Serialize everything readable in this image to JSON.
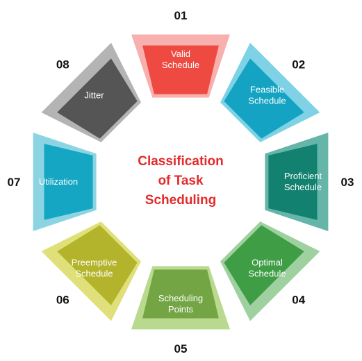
{
  "center_title": [
    "Classification",
    "of Task",
    "Scheduling"
  ],
  "segments": [
    {
      "number": "01",
      "label": [
        "Valid",
        "Schedule"
      ],
      "color": "#ee4a42",
      "tint": "#f7b0ad"
    },
    {
      "number": "02",
      "label": [
        "Feasible",
        "Schedule"
      ],
      "color": "#14a3c2",
      "tint": "#7fd2e6"
    },
    {
      "number": "03",
      "label": [
        "Proficient",
        "Schedule"
      ],
      "color": "#128170",
      "tint": "#65b5a9"
    },
    {
      "number": "04",
      "label": [
        "Optimal",
        "Schedule"
      ],
      "color": "#3f9d45",
      "tint": "#9fd09f"
    },
    {
      "number": "05",
      "label": [
        "Scheduling",
        "Points"
      ],
      "color": "#74a545",
      "tint": "#b9d98f"
    },
    {
      "number": "06",
      "label": [
        "Preemptive",
        "Schedule"
      ],
      "color": "#b4b42c",
      "tint": "#dfe07a"
    },
    {
      "number": "07",
      "label": [
        "Utilization"
      ],
      "color": "#14a6c2",
      "tint": "#8dd4e3"
    },
    {
      "number": "08",
      "label": [
        "Jitter"
      ],
      "color": "#555555",
      "tint": "#b4b4b4"
    }
  ]
}
